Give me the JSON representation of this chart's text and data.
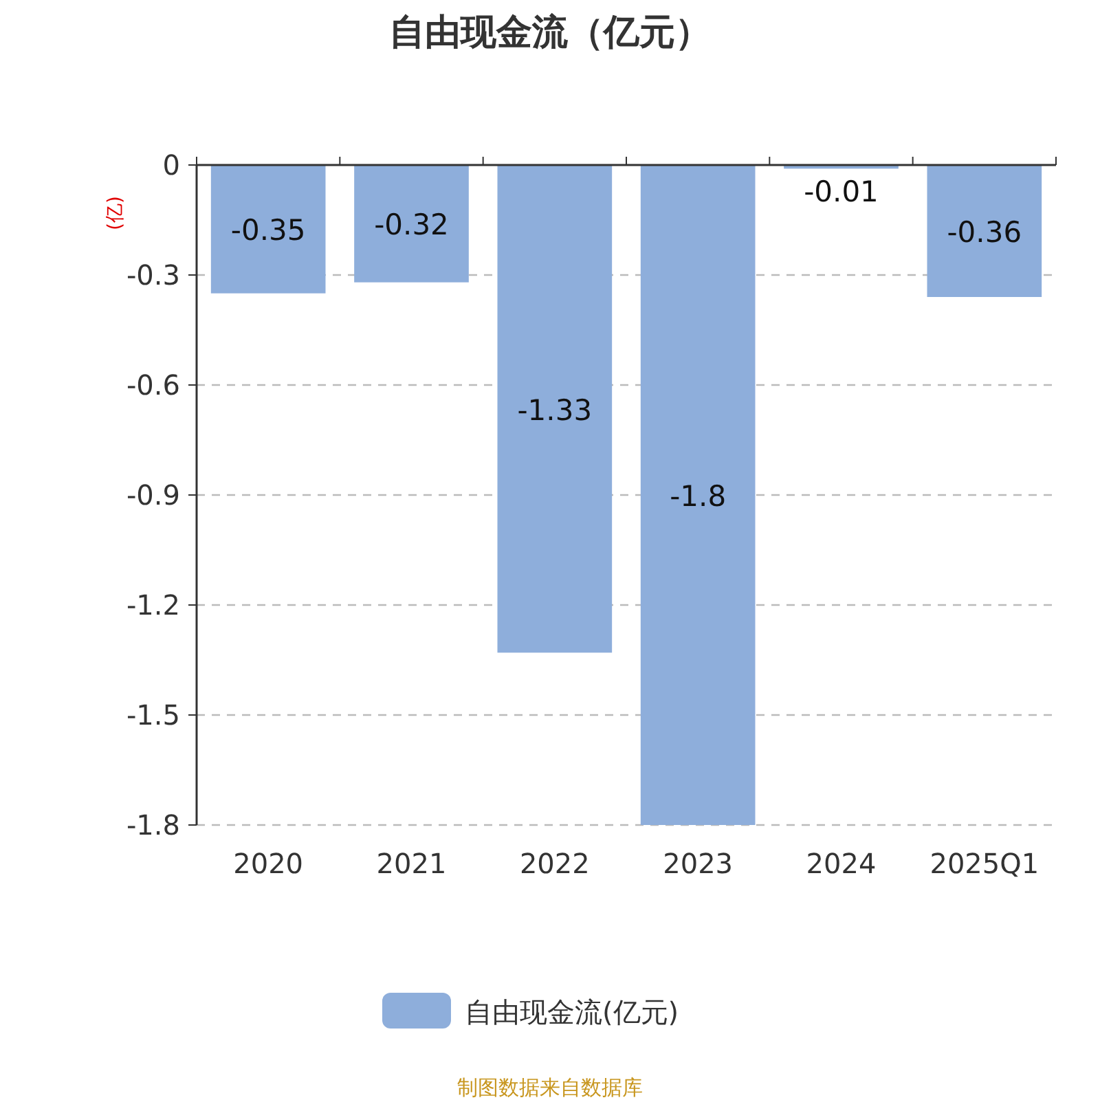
{
  "chart_data": {
    "type": "bar",
    "title": "自由现金流（亿元）",
    "ylabel": "(亿)",
    "categories": [
      "2020",
      "2021",
      "2022",
      "2023",
      "2024",
      "2025Q1"
    ],
    "series": [
      {
        "name": "自由现金流(亿元)",
        "color": "#8eaedb",
        "values": [
          -0.35,
          -0.32,
          -1.33,
          -1.8,
          -0.01,
          -0.36
        ]
      }
    ],
    "ylim": [
      -1.8,
      0
    ],
    "yticks": [
      0,
      -0.3,
      -0.6,
      -0.9,
      -1.2,
      -1.5,
      -1.8
    ],
    "grid": "y",
    "legend": "bottom",
    "data_labels": true,
    "annotations": [
      "制图数据来自数据库"
    ]
  }
}
